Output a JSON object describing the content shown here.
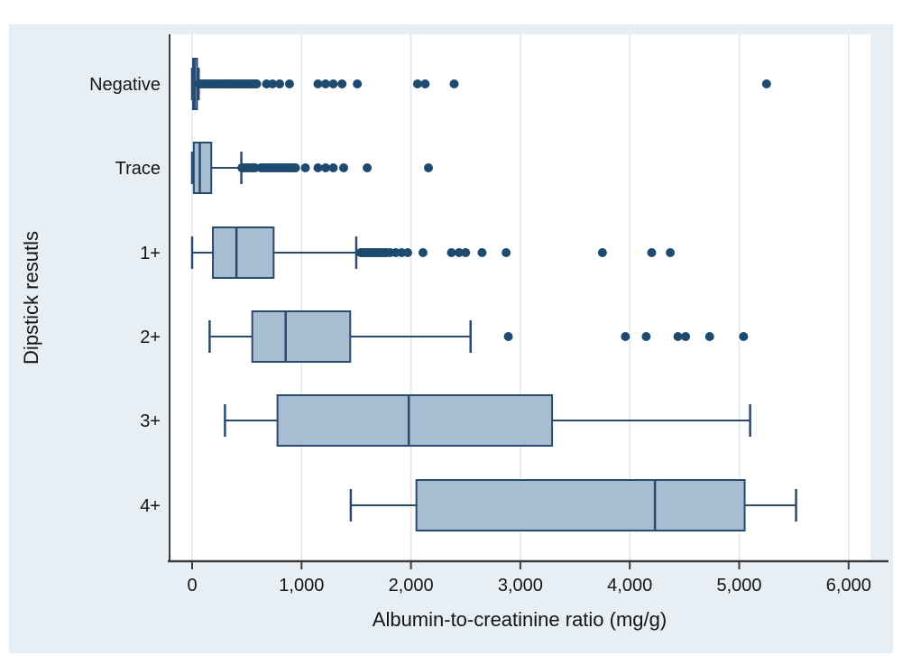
{
  "chart_data": {
    "type": "boxplot",
    "orientation": "horizontal",
    "title": "",
    "xlabel": "Albumin-to-creatinine ratio (mg/g)",
    "ylabel": "Dipstick resutls",
    "x_range": [
      -200,
      6400
    ],
    "grid": true,
    "x_ticks": [
      {
        "value": 0,
        "label": "0"
      },
      {
        "value": 1000,
        "label": "1,000"
      },
      {
        "value": 2000,
        "label": "2,000"
      },
      {
        "value": 3000,
        "label": "3,000"
      },
      {
        "value": 4000,
        "label": "4,000"
      },
      {
        "value": 5000,
        "label": "5,000"
      },
      {
        "value": 6000,
        "label": "6,000"
      }
    ],
    "categories": [
      "Negative",
      "Trace",
      "1+",
      "2+",
      "3+",
      "4+"
    ],
    "series": [
      {
        "category": "Negative",
        "whisker_low": 0,
        "q1": 8,
        "median": 22,
        "q3": 45,
        "whisker_high": 60,
        "outliers": [
          65,
          80,
          95,
          110,
          125,
          140,
          155,
          170,
          185,
          200,
          215,
          230,
          245,
          260,
          275,
          290,
          305,
          320,
          335,
          350,
          365,
          380,
          395,
          410,
          425,
          440,
          455,
          470,
          485,
          500,
          515,
          530,
          545,
          560,
          575,
          590,
          680,
          735,
          800,
          890,
          1150,
          1220,
          1290,
          1370,
          1510,
          2060,
          2130,
          2395,
          5250
        ]
      },
      {
        "category": "Trace",
        "whisker_low": 0,
        "q1": 15,
        "median": 70,
        "q3": 175,
        "whisker_high": 450,
        "outliers": [
          455,
          470,
          485,
          500,
          515,
          530,
          545,
          560,
          575,
          630,
          645,
          660,
          675,
          690,
          705,
          720,
          735,
          750,
          765,
          780,
          795,
          810,
          825,
          840,
          855,
          870,
          885,
          900,
          915,
          930,
          945,
          1035,
          1150,
          1220,
          1290,
          1385,
          1600,
          2160
        ]
      },
      {
        "category": "1+",
        "whisker_low": 0,
        "q1": 190,
        "median": 405,
        "q3": 745,
        "whisker_high": 1500,
        "outliers": [
          1540,
          1555,
          1570,
          1585,
          1600,
          1615,
          1630,
          1645,
          1660,
          1675,
          1690,
          1705,
          1720,
          1735,
          1750,
          1765,
          1780,
          1810,
          1860,
          1915,
          1970,
          2110,
          2370,
          2440,
          2500,
          2650,
          2870,
          3750,
          4200,
          4370
        ]
      },
      {
        "category": "2+",
        "whisker_low": 160,
        "q1": 550,
        "median": 855,
        "q3": 1445,
        "whisker_high": 2545,
        "outliers": [
          2890,
          3960,
          4150,
          4440,
          4510,
          4730,
          5040
        ]
      },
      {
        "category": "3+",
        "whisker_low": 300,
        "q1": 780,
        "median": 1980,
        "q3": 3290,
        "whisker_high": 5100,
        "outliers": []
      },
      {
        "category": "4+",
        "whisker_low": 1450,
        "q1": 2050,
        "median": 4230,
        "q3": 5050,
        "whisker_high": 5520,
        "outliers": []
      }
    ],
    "colors": {
      "panel_bg": "#e7eef4",
      "plot_bg": "#ffffff",
      "grid": "#dde7ef",
      "axis": "#3c3c3c",
      "box_fill": "#a8bdd2",
      "box_border": "#2a4a70",
      "outlier_dot": "#1d4a6e",
      "text": "#151515"
    }
  }
}
